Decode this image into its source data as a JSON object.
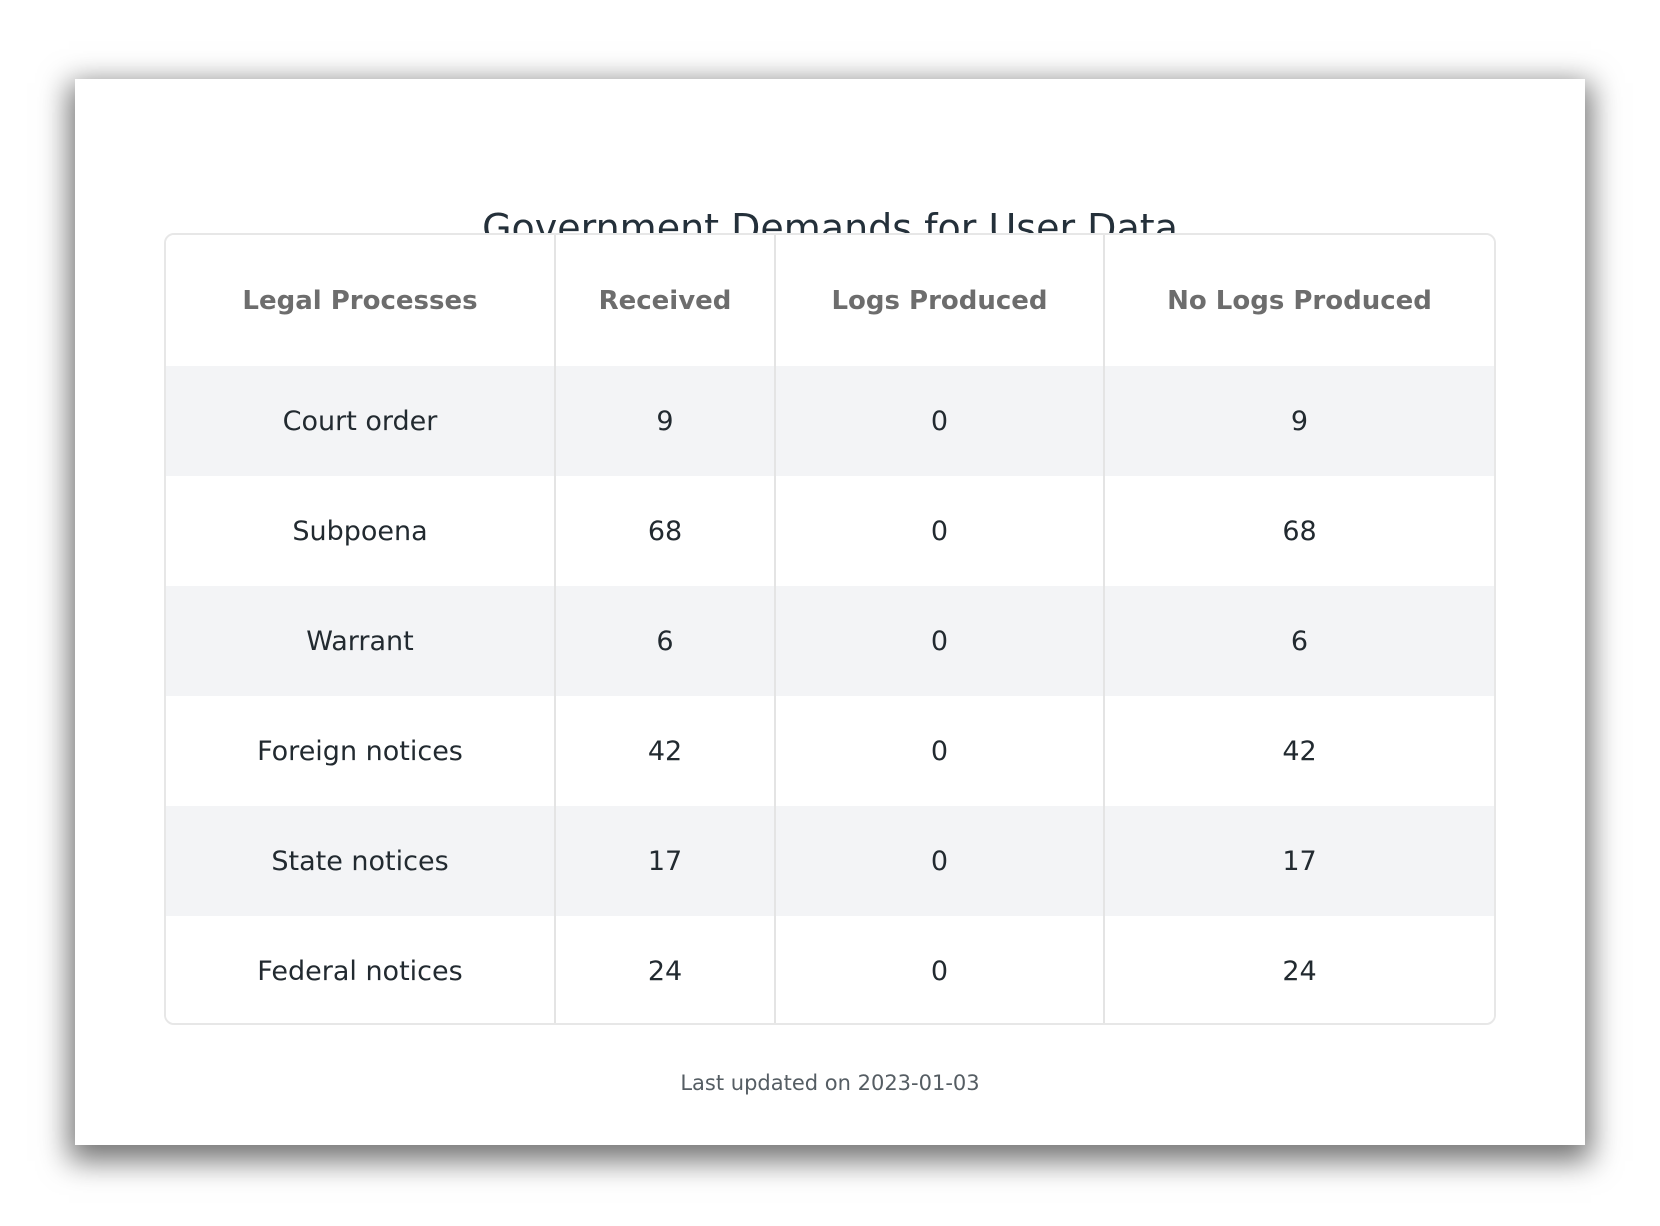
{
  "title": "Government Demands for User Data",
  "table": {
    "headers": [
      "Legal Processes",
      "Received",
      "Logs Produced",
      "No Logs Produced"
    ],
    "rows": [
      [
        "Court order",
        "9",
        "0",
        "9"
      ],
      [
        "Subpoena",
        "68",
        "0",
        "68"
      ],
      [
        "Warrant",
        "6",
        "0",
        "6"
      ],
      [
        "Foreign notices",
        "42",
        "0",
        "42"
      ],
      [
        "State notices",
        "17",
        "0",
        "17"
      ],
      [
        "Federal notices",
        "24",
        "0",
        "24"
      ]
    ]
  },
  "footer": "Last updated on 2023-01-03",
  "colors": {
    "title": "#24303a",
    "header_text": "#6d6d6d",
    "cell_text": "#222a30",
    "stripe": "#f3f4f6",
    "border": "#e4e4e4",
    "footer_text": "#555d63"
  }
}
